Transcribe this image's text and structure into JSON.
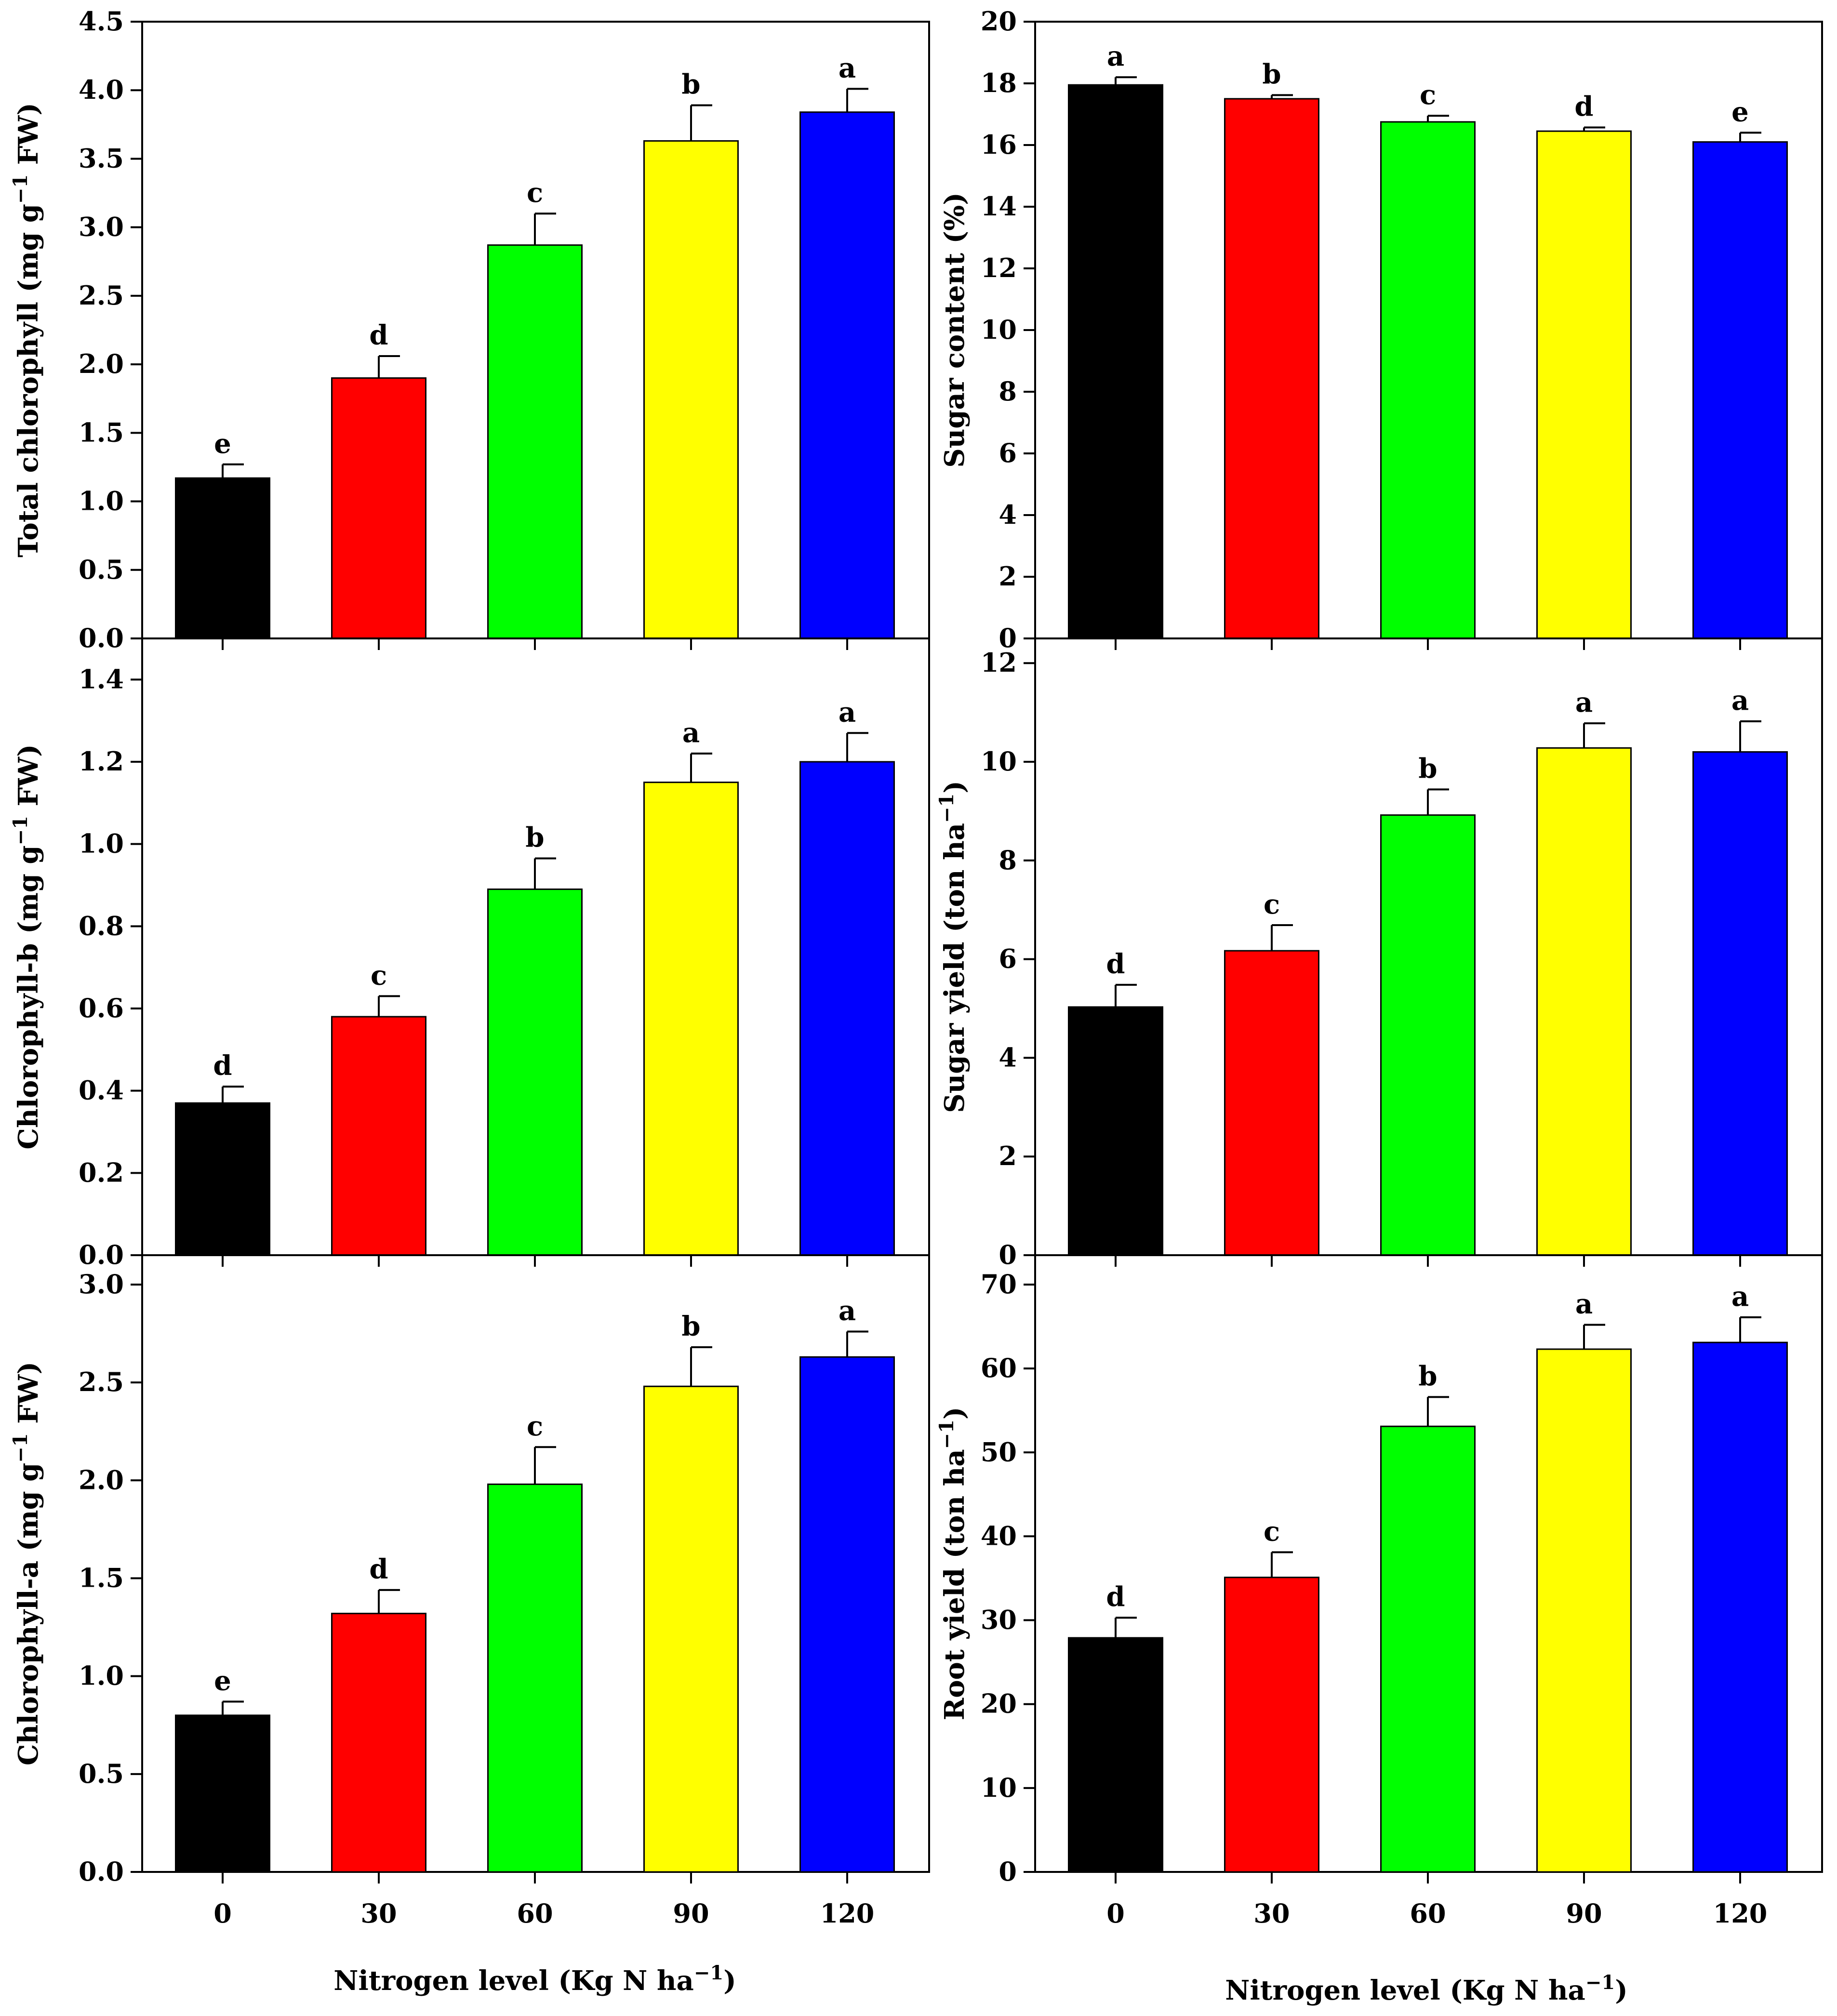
{
  "colors": {
    "bar_0": "#000000",
    "bar_30": "#ff0000",
    "bar_60": "#00ff00",
    "bar_90": "#ffff00",
    "bar_120": "#0000ff",
    "axis": "#000000"
  },
  "x_axis": {
    "categories": [
      "0",
      "30",
      "60",
      "90",
      "120"
    ],
    "label": "Nitrogen level (Kg N ha",
    "label_sup": "−1",
    "label_end": ")"
  },
  "chart_data": [
    {
      "type": "bar",
      "id": "total-chlorophyll",
      "ylabel": "Total chlorophyll (mg g",
      "ylabel_sup": "−1",
      "ylabel_end": " FW)",
      "categories": [
        "0",
        "30",
        "60",
        "90",
        "120"
      ],
      "values": [
        1.17,
        1.9,
        2.87,
        3.63,
        3.84
      ],
      "errors": [
        0.1,
        0.16,
        0.23,
        0.26,
        0.17
      ],
      "letters": [
        "e",
        "d",
        "c",
        "b",
        "a"
      ],
      "ylim": [
        0,
        4.5
      ],
      "ticks": [
        "0.0",
        "0.5",
        "1.0",
        "1.5",
        "2.0",
        "2.5",
        "3.0",
        "3.5",
        "4.0",
        "4.5"
      ],
      "tick_values": [
        0,
        0.5,
        1.0,
        1.5,
        2.0,
        2.5,
        3.0,
        3.5,
        4.0,
        4.5
      ]
    },
    {
      "type": "bar",
      "id": "sugar-content",
      "ylabel": "Sugar content (%)",
      "ylabel_sup": "",
      "ylabel_end": "",
      "categories": [
        "0",
        "30",
        "60",
        "90",
        "120"
      ],
      "values": [
        17.95,
        17.5,
        16.75,
        16.45,
        16.1
      ],
      "errors": [
        0.25,
        0.12,
        0.2,
        0.12,
        0.3
      ],
      "letters": [
        "a",
        "b",
        "c",
        "d",
        "e"
      ],
      "ylim": [
        0,
        20
      ],
      "ticks": [
        "0",
        "2",
        "4",
        "6",
        "8",
        "10",
        "12",
        "14",
        "16",
        "18",
        "20"
      ],
      "tick_values": [
        0,
        2,
        4,
        6,
        8,
        10,
        12,
        14,
        16,
        18,
        20
      ]
    },
    {
      "type": "bar",
      "id": "chlorophyll-b",
      "ylabel": "Chlorophyll-b (mg g",
      "ylabel_sup": "−1",
      "ylabel_end": " FW)",
      "categories": [
        "0",
        "30",
        "60",
        "90",
        "120"
      ],
      "values": [
        0.37,
        0.58,
        0.89,
        1.15,
        1.2
      ],
      "errors": [
        0.04,
        0.05,
        0.075,
        0.07,
        0.07
      ],
      "letters": [
        "d",
        "c",
        "b",
        "a",
        "a"
      ],
      "ylim": [
        0,
        1.5
      ],
      "ticks": [
        "0.0",
        "0.2",
        "0.4",
        "0.6",
        "0.8",
        "1.0",
        "1.2",
        "1.4"
      ],
      "tick_values": [
        0,
        0.2,
        0.4,
        0.6,
        0.8,
        1.0,
        1.2,
        1.4
      ]
    },
    {
      "type": "bar",
      "id": "sugar-yield",
      "ylabel": "Sugar yield (ton ha",
      "ylabel_sup": "−1",
      "ylabel_end": ")",
      "categories": [
        "0",
        "30",
        "60",
        "90",
        "120"
      ],
      "values": [
        5.03,
        6.17,
        8.92,
        10.28,
        10.2
      ],
      "errors": [
        0.45,
        0.52,
        0.52,
        0.5,
        0.62
      ],
      "letters": [
        "d",
        "c",
        "b",
        "a",
        "a"
      ],
      "ylim": [
        0,
        12.5
      ],
      "ticks": [
        "0",
        "2",
        "4",
        "6",
        "8",
        "10",
        "12"
      ],
      "tick_values": [
        0,
        2,
        4,
        6,
        8,
        10,
        12
      ]
    },
    {
      "type": "bar",
      "id": "chlorophyll-a",
      "ylabel": "Chlorophyll-a (mg g",
      "ylabel_sup": "−1",
      "ylabel_end": " FW)",
      "categories": [
        "0",
        "30",
        "60",
        "90",
        "120"
      ],
      "values": [
        0.8,
        1.32,
        1.98,
        2.48,
        2.63
      ],
      "errors": [
        0.07,
        0.12,
        0.19,
        0.2,
        0.13
      ],
      "letters": [
        "e",
        "d",
        "c",
        "b",
        "a"
      ],
      "ylim": [
        0,
        3.15
      ],
      "ticks": [
        "0.0",
        "0.5",
        "1.0",
        "1.5",
        "2.0",
        "2.5",
        "3.0"
      ],
      "tick_values": [
        0,
        0.5,
        1.0,
        1.5,
        2.0,
        2.5,
        3.0
      ]
    },
    {
      "type": "bar",
      "id": "root-yield",
      "ylabel": "Root yield (ton ha",
      "ylabel_sup": "−1",
      "ylabel_end": ")",
      "categories": [
        "0",
        "30",
        "60",
        "90",
        "120"
      ],
      "values": [
        27.9,
        35.1,
        53.1,
        62.3,
        63.1
      ],
      "errors": [
        2.4,
        3.0,
        3.5,
        2.9,
        3.0
      ],
      "letters": [
        "d",
        "c",
        "b",
        "a",
        "a"
      ],
      "ylim": [
        0,
        73.5
      ],
      "ticks": [
        "0",
        "10",
        "20",
        "30",
        "40",
        "50",
        "60",
        "70"
      ],
      "tick_values": [
        0,
        10,
        20,
        30,
        40,
        50,
        60,
        70
      ]
    }
  ]
}
